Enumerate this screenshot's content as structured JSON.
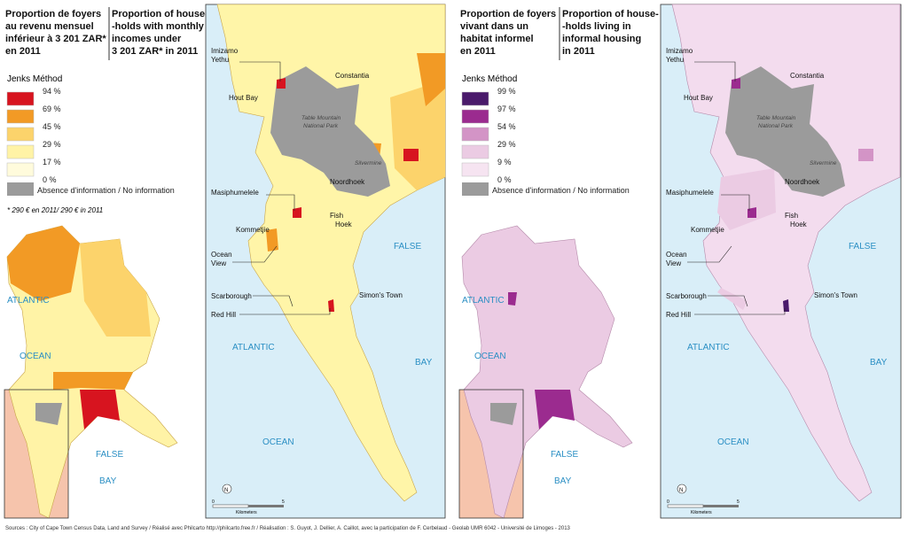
{
  "left": {
    "title_fr": [
      "Proportion de foyers",
      "au revenu mensuel",
      "inférieur à 3 201 ZAR*",
      "en 2011"
    ],
    "title_en": [
      "Proportion of house-",
      "-holds with monthly",
      "incomes under",
      "3 201 ZAR* in 2011"
    ],
    "legend_title": "Jenks Méthod",
    "breaks": [
      "94 %",
      "69 %",
      "45 %",
      "29 %",
      "17 %",
      "0 %"
    ],
    "colors": [
      "#d7141f",
      "#f29a25",
      "#fcd36b",
      "#fff3a6",
      "#fffbdc"
    ],
    "no_info": "Absence d'information / No information",
    "footnote": "* 290 € en 2011/ 290 € in 2011",
    "land_color": "#fff5a8"
  },
  "right": {
    "title_fr": [
      "Proportion de foyers",
      "vivant dans un",
      "habitat informel",
      "en 2011"
    ],
    "title_en": [
      "Proportion of house-",
      "-holds living in",
      "informal housing",
      "in 2011"
    ],
    "legend_title": "Jenks Méthod",
    "breaks": [
      "99 %",
      "97 %",
      "54 %",
      "29 %",
      "9 %",
      "0 %"
    ],
    "colors": [
      "#4a1a6b",
      "#9b2b8f",
      "#d394c6",
      "#ebcbe3",
      "#f6e4f1"
    ],
    "no_info": "Absence d'information / No information",
    "land_color": "#f3dcee"
  },
  "places": {
    "imizamo": [
      "Imizamo",
      "Yethu"
    ],
    "hout_bay": "Hout Bay",
    "constantia": "Constantia",
    "park": [
      "Table Mountain",
      "National Park"
    ],
    "silvermine": "Silvermine",
    "noordhoek": "Noordhoek",
    "masiphumelele": "Masiphumelele",
    "fish_hoek": [
      "Fish",
      "Hoek"
    ],
    "kommetjie": "Kommetjie",
    "ocean_view": [
      "Ocean",
      "View"
    ],
    "simons_town": "Simon's Town",
    "scarborough": "Scarborough",
    "red_hill": "Red Hill"
  },
  "seas": {
    "atlantic": "ATLANTIC",
    "ocean": "OCEAN",
    "false": "FALSE",
    "bay": "BAY"
  },
  "scale": {
    "zero": "0",
    "five": "5",
    "unit": "Kilometers",
    "north": "N"
  },
  "colors": {
    "sea": "#d9eef8",
    "no_info": "#9b9b9b",
    "inset": "#f6c4ac"
  },
  "footer": "Sources : City of Cape Town Census Data, Land and Survey / Réalisé avec Philcarto http://philcarto.free.fr / Réalisation : S. Guyot, J. Dellier, A. Caillot, avec la participation de F. Cerbelaud - Geolab UMR 6042 - Université de Limoges - 2013"
}
